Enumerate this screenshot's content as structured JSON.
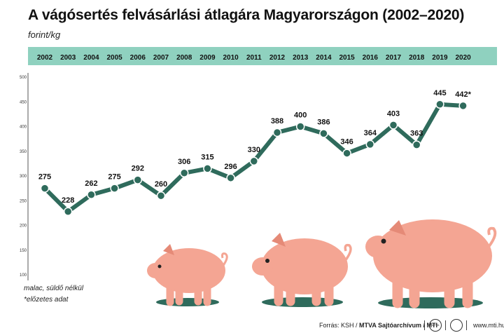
{
  "title": "A vágósertés felvásárlási átlagára Magyarországon  (2002–2020)",
  "unit": "forint/kg",
  "notes": [
    "malac, süldő nélkül",
    "*előzetes adat"
  ],
  "source": {
    "prefix": "Forrás: KSH / ",
    "bold": "MTVA Sajtóarchívum / MTI",
    "url": "www.mti.hu",
    "logo1": "MTVA"
  },
  "colors": {
    "line": "#2f6b5c",
    "year_band": "#8fd1bf",
    "pig": "#f4a593",
    "pig_dark": "#e58a77",
    "shadow": "#2f6b5c"
  },
  "chart_data": {
    "type": "line",
    "x": [
      "2002",
      "2003",
      "2004",
      "2005",
      "2006",
      "2007",
      "2008",
      "2009",
      "2010",
      "2011",
      "2012",
      "2013",
      "2014",
      "2015",
      "2016",
      "2017",
      "2018",
      "2019",
      "2020"
    ],
    "series": [
      {
        "values": [
          275,
          228,
          262,
          275,
          292,
          260,
          306,
          315,
          296,
          330,
          388,
          400,
          386,
          346,
          364,
          403,
          363,
          445,
          442
        ]
      }
    ],
    "point_labels": [
      "275",
      "228",
      "262",
      "275",
      "292",
      "260",
      "306",
      "315",
      "296",
      "330",
      "388",
      "400",
      "386",
      "346",
      "364",
      "403",
      "363",
      "445",
      "442*"
    ],
    "yticks": [
      "500",
      "450",
      "400",
      "350",
      "300",
      "250",
      "200",
      "150",
      "100"
    ],
    "ylim": [
      100,
      500
    ],
    "grid": false
  }
}
